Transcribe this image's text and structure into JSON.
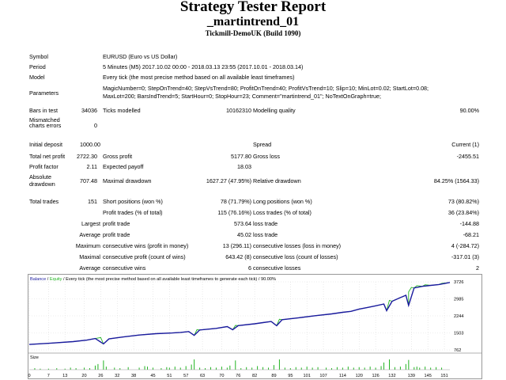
{
  "header": {
    "title": "Strategy Tester Report",
    "expert": "_martintrend_01",
    "server": "Tickmill-DemoUK (Build 1090)"
  },
  "info": {
    "symbol": {
      "label": "Symbol",
      "value": "EURUSD (Euro vs US Dollar)"
    },
    "period": {
      "label": "Period",
      "value": "5 Minutes (M5) 2017.10.02 00:00 - 2018.03.13 23:55 (2017.10.01 - 2018.03.14)"
    },
    "model": {
      "label": "Model",
      "value": "Every tick (the most precise method based on all available least timeframes)"
    },
    "parameters": {
      "label": "Parameters",
      "line1": "MagicNumber=0; StepOnTrend=40; StepVsTrend=80; ProfitOnTrend=40; ProfitVsTrend=10; Slip=10; MinLot=0.02; StartLot=0.08;",
      "line2": "MaxLot=200; BarsIndTrend=5; StartHour=0; StopHour=23; Comment=\"martintrend_01\"; NoTextOnGraph=true;"
    }
  },
  "stats": {
    "bars": {
      "label": "Bars in test",
      "value": "34036",
      "l2": "Ticks modelled",
      "v2": "10162310",
      "l3": "Modelling quality",
      "v3": "90.00%"
    },
    "mismatch": {
      "label1": "Mismatched",
      "label2": "charts errors",
      "value": "0"
    },
    "deposit": {
      "label": "Initial deposit",
      "value": "1000.00",
      "l3": "Spread",
      "v3": "Current (1)"
    },
    "net": {
      "label": "Total net profit",
      "value": "2722.30",
      "l2": "Gross profit",
      "v2": "5177.80",
      "l3": "Gross loss",
      "v3": "-2455.51"
    },
    "pf": {
      "label": "Profit factor",
      "value": "2.11",
      "l2": "Expected payoff",
      "v2": "18.03"
    },
    "abs": {
      "label1": "Absolute",
      "label2": "drawdown",
      "value": "707.48",
      "l2": "Maximal drawdown",
      "v2": "1627.27 (47.95%)",
      "l3": "Relative drawdown",
      "v3": "84.25% (1564.33)"
    },
    "trades": {
      "label": "Total trades",
      "value": "151",
      "l2": "Short positions (won %)",
      "v2": "78 (71.79%)",
      "l3": "Long positions (won %)",
      "v3": "73 (80.82%)"
    },
    "ptrades": {
      "l2": "Profit trades (% of total)",
      "v2": "115 (76.16%)",
      "l3": "Loss trades (% of total)",
      "v3": "36 (23.84%)"
    },
    "largest": {
      "label": "Largest",
      "l2": "profit trade",
      "v2": "573.64",
      "l3": "loss trade",
      "v3": "-144.88"
    },
    "average": {
      "label": "Average",
      "l2": "profit trade",
      "v2": "45.02",
      "l3": "loss trade",
      "v3": "-68.21"
    },
    "maxcons": {
      "label": "Maximum",
      "l2": "consecutive wins (profit in money)",
      "v2": "13 (296.11)",
      "l3": "consecutive losses (loss in money)",
      "v3": "4 (-284.72)"
    },
    "maximal": {
      "label": "Maximal",
      "l2": "consecutive profit (count of wins)",
      "v2": "643.42 (8)",
      "l3": "consecutive loss (count of losses)",
      "v3": "-317.01 (3)"
    },
    "avgcons": {
      "label": "Average",
      "l2": "consecutive wins",
      "v2": "6",
      "l3": "consecutive losses",
      "v3": "2"
    }
  },
  "chart_data": {
    "type": "line",
    "caption_balance": "Balance",
    "caption_sep": " / ",
    "caption_equity": "Equity",
    "caption_rest": " / Every tick (the most precise method based on all available least timeframes to generate each tick) / 90.00%",
    "yticks": [
      "3726",
      "2985",
      "2244",
      "1503",
      "762"
    ],
    "ylim": [
      762,
      3726
    ],
    "xticks": [
      "0",
      "7",
      "13",
      "20",
      "26",
      "32",
      "38",
      "45",
      "51",
      "57",
      "63",
      "70",
      "76",
      "82",
      "89",
      "95",
      "101",
      "107",
      "114",
      "120",
      "126",
      "132",
      "139",
      "145",
      "151"
    ],
    "xlim": [
      0,
      153
    ],
    "size_label": "Size",
    "colors": {
      "balance": "#1a1a9e",
      "equity": "#22b422",
      "size": "#22b422",
      "caption_balance": "#1a1a9e",
      "caption_equity": "#22b422"
    },
    "balance": [
      [
        0,
        1000
      ],
      [
        8,
        1060
      ],
      [
        16,
        1125
      ],
      [
        21,
        1190
      ],
      [
        24,
        1260
      ],
      [
        27,
        1025
      ],
      [
        29,
        1240
      ],
      [
        34,
        1325
      ],
      [
        40,
        1410
      ],
      [
        46,
        1470
      ],
      [
        52,
        1500
      ],
      [
        55,
        1525
      ],
      [
        58,
        1560
      ],
      [
        60,
        1395
      ],
      [
        62,
        1630
      ],
      [
        68,
        1700
      ],
      [
        72,
        1780
      ],
      [
        74,
        1640
      ],
      [
        76,
        1820
      ],
      [
        82,
        1900
      ],
      [
        85,
        1950
      ],
      [
        88,
        2000
      ],
      [
        90,
        1815
      ],
      [
        92,
        2080
      ],
      [
        98,
        2160
      ],
      [
        104,
        2250
      ],
      [
        110,
        2330
      ],
      [
        114,
        2400
      ],
      [
        117,
        2440
      ],
      [
        120,
        2540
      ],
      [
        123,
        2610
      ],
      [
        126,
        2680
      ],
      [
        129,
        2760
      ],
      [
        130,
        2470
      ],
      [
        132,
        2880
      ],
      [
        135,
        3040
      ],
      [
        137,
        3140
      ],
      [
        138,
        2700
      ],
      [
        140,
        3460
      ],
      [
        143,
        3530
      ],
      [
        146,
        3570
      ],
      [
        149,
        3610
      ],
      [
        153,
        3700
      ]
    ],
    "equity_peaks": [
      [
        26,
        1300
      ],
      [
        61,
        1640
      ],
      [
        75,
        1830
      ],
      [
        91,
        2095
      ],
      [
        131,
        2920
      ],
      [
        138,
        3290
      ],
      [
        139,
        3480
      ],
      [
        141,
        3560
      ],
      [
        144,
        3600
      ],
      [
        150,
        3660
      ]
    ],
    "sizes": [
      [
        2,
        0.15
      ],
      [
        4,
        0.1
      ],
      [
        7,
        0.1
      ],
      [
        10,
        0.15
      ],
      [
        13,
        0.1
      ],
      [
        15,
        0.2
      ],
      [
        17,
        0.15
      ],
      [
        20,
        0.2
      ],
      [
        22,
        0.15
      ],
      [
        24,
        0.4
      ],
      [
        25,
        0.55
      ],
      [
        27,
        0.9
      ],
      [
        28,
        0.3
      ],
      [
        31,
        0.2
      ],
      [
        33,
        0.15
      ],
      [
        36,
        0.25
      ],
      [
        40,
        0.2
      ],
      [
        42,
        0.35
      ],
      [
        43,
        0.3
      ],
      [
        45,
        0.2
      ],
      [
        48,
        0.15
      ],
      [
        50,
        0.25
      ],
      [
        51,
        0.2
      ],
      [
        53,
        0.3
      ],
      [
        55,
        0.2
      ],
      [
        57,
        0.35
      ],
      [
        59,
        0.5
      ],
      [
        60,
        1.0
      ],
      [
        62,
        0.2
      ],
      [
        64,
        0.15
      ],
      [
        66,
        0.25
      ],
      [
        68,
        0.2
      ],
      [
        70,
        0.3
      ],
      [
        72,
        0.2
      ],
      [
        73,
        0.4
      ],
      [
        75,
        0.9
      ],
      [
        77,
        0.15
      ],
      [
        79,
        0.25
      ],
      [
        81,
        0.2
      ],
      [
        83,
        0.35
      ],
      [
        85,
        0.25
      ],
      [
        87,
        0.2
      ],
      [
        89,
        0.45
      ],
      [
        91,
        1.0
      ],
      [
        93,
        0.2
      ],
      [
        95,
        0.15
      ],
      [
        97,
        0.25
      ],
      [
        99,
        0.2
      ],
      [
        101,
        0.3
      ],
      [
        103,
        0.2
      ],
      [
        105,
        0.25
      ],
      [
        108,
        0.2
      ],
      [
        110,
        0.15
      ],
      [
        112,
        0.25
      ],
      [
        114,
        0.2
      ],
      [
        116,
        0.3
      ],
      [
        118,
        0.2
      ],
      [
        120,
        0.25
      ],
      [
        122,
        0.2
      ],
      [
        124,
        0.3
      ],
      [
        126,
        0.2
      ],
      [
        128,
        0.35
      ],
      [
        129,
        0.7
      ],
      [
        131,
        1.0
      ],
      [
        133,
        0.25
      ],
      [
        135,
        0.3
      ],
      [
        137,
        0.55
      ],
      [
        138,
        0.95
      ],
      [
        140,
        0.25
      ],
      [
        141,
        0.3
      ],
      [
        142,
        0.2
      ],
      [
        144,
        0.3
      ],
      [
        146,
        0.2
      ],
      [
        148,
        0.25
      ],
      [
        150,
        0.2
      ]
    ]
  }
}
